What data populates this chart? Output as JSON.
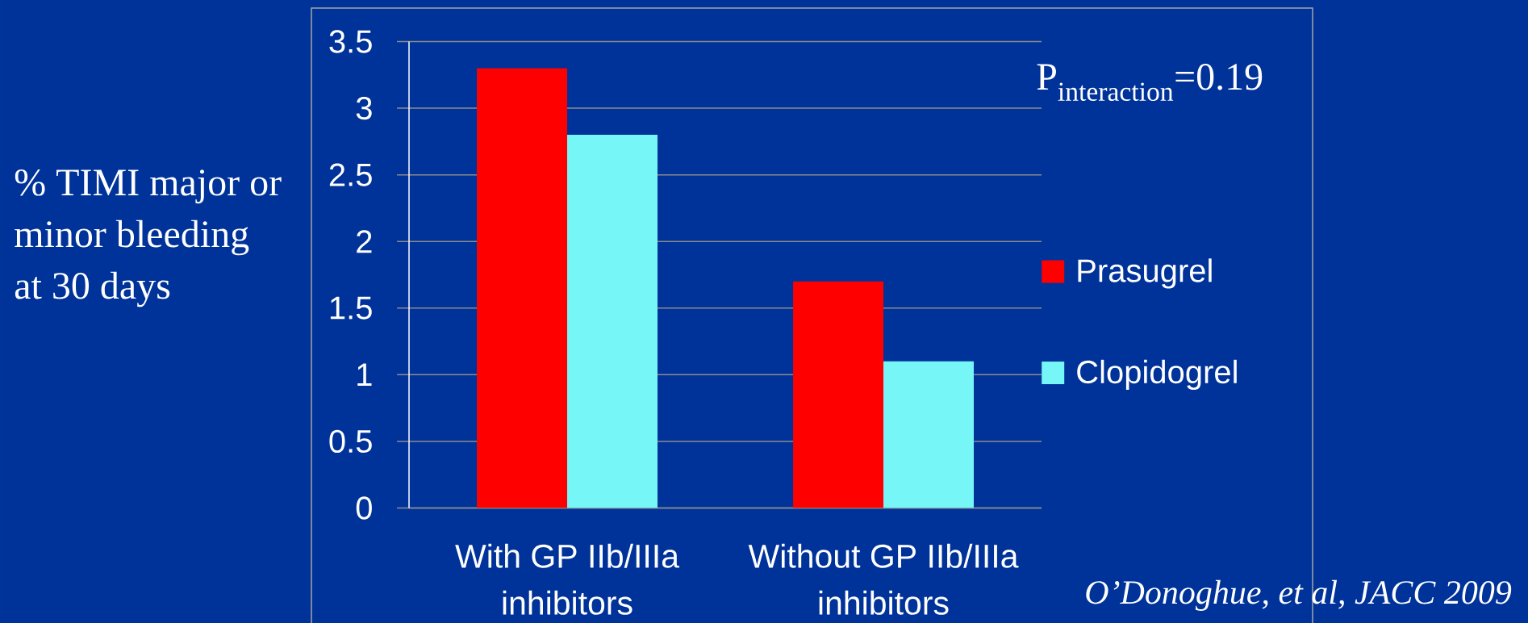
{
  "chart_data": {
    "type": "bar",
    "categories": [
      "With GP IIb/IIIa inhibitors",
      "Without GP IIb/IIIa inhibitors"
    ],
    "series": [
      {
        "name": "Prasugrel",
        "color": "#ff0000",
        "values": [
          3.3,
          1.7
        ]
      },
      {
        "name": "Clopidogrel",
        "color": "#76f6f6",
        "values": [
          2.8,
          1.1
        ]
      }
    ],
    "ylabel": "% TIMI major or minor bleeding at 30 days",
    "ylim": [
      0,
      3.5
    ],
    "yticks": [
      0,
      0.5,
      1,
      1.5,
      2,
      2.5,
      3,
      3.5
    ],
    "grid": "y",
    "legend": "right",
    "annotations": [
      "\\text{P}_{\\text{interaction}}\\text{=0.19}",
      "O’Donoghue, et al, JACC 2009"
    ]
  }
}
